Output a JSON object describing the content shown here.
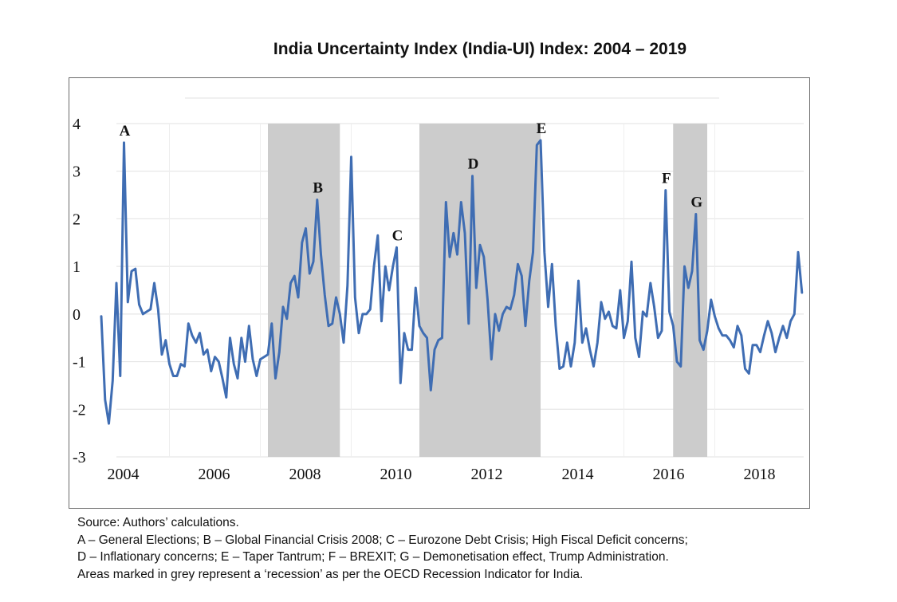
{
  "chart_data": {
    "type": "line",
    "title": "India Uncertainty Index (India-UI) Index: 2004 – 2019",
    "xlabel": "",
    "ylabel": "",
    "ylim": [
      -3,
      4
    ],
    "yticks": [
      "4",
      "3",
      "2",
      "1",
      "0",
      "-1",
      "-2",
      "-3"
    ],
    "ytick_values": [
      4,
      3,
      2,
      1,
      0,
      -1,
      -2,
      -3
    ],
    "xtick_labels": [
      "2004",
      "2006",
      "2008",
      "2010",
      "2012",
      "2014",
      "2016",
      "2018"
    ],
    "x_start": "2004-01",
    "x_frequency": "monthly",
    "grid": true,
    "line_color": "#3f6db3",
    "recession_color": "#cccccc",
    "recession_periods": [
      {
        "start": "2007-09",
        "end": "2009-04"
      },
      {
        "start": "2011-01",
        "end": "2013-09"
      },
      {
        "start": "2016-08",
        "end": "2017-05"
      }
    ],
    "series": [
      {
        "name": "India-UI",
        "values": [
          -0.05,
          -1.8,
          -2.3,
          -1.4,
          0.65,
          -1.3,
          3.6,
          0.25,
          0.9,
          0.95,
          0.2,
          0.0,
          0.05,
          0.1,
          0.65,
          0.1,
          -0.85,
          -0.55,
          -1.05,
          -1.3,
          -1.3,
          -1.05,
          -1.1,
          -0.2,
          -0.45,
          -0.6,
          -0.4,
          -0.85,
          -0.75,
          -1.2,
          -0.9,
          -1.0,
          -1.35,
          -1.75,
          -0.5,
          -1.05,
          -1.35,
          -0.5,
          -1.0,
          -0.25,
          -0.95,
          -1.3,
          -0.95,
          -0.9,
          -0.85,
          -0.2,
          -1.35,
          -0.8,
          0.15,
          -0.1,
          0.65,
          0.8,
          0.35,
          1.5,
          1.8,
          0.85,
          1.1,
          2.4,
          1.25,
          0.4,
          -0.25,
          -0.2,
          0.35,
          0.0,
          -0.6,
          0.6,
          3.3,
          0.35,
          -0.4,
          0.0,
          0.0,
          0.1,
          1.0,
          1.65,
          -0.15,
          1.0,
          0.5,
          1.0,
          1.4,
          -1.45,
          -0.4,
          -0.75,
          -0.75,
          0.55,
          -0.25,
          -0.4,
          -0.5,
          -1.6,
          -0.75,
          -0.55,
          -0.5,
          2.35,
          1.2,
          1.7,
          1.25,
          2.35,
          1.7,
          -0.2,
          2.9,
          0.55,
          1.45,
          1.2,
          0.3,
          -0.95,
          0.0,
          -0.35,
          0.0,
          0.15,
          0.1,
          0.4,
          1.05,
          0.8,
          -0.25,
          0.7,
          1.3,
          3.55,
          3.65,
          1.3,
          0.15,
          1.05,
          -0.25,
          -1.15,
          -1.1,
          -0.6,
          -1.1,
          -0.6,
          0.7,
          -0.6,
          -0.3,
          -0.75,
          -1.1,
          -0.6,
          0.25,
          -0.1,
          0.05,
          -0.25,
          -0.3,
          0.5,
          -0.5,
          -0.15,
          1.1,
          -0.5,
          -0.9,
          0.05,
          -0.05,
          0.65,
          0.15,
          -0.5,
          -0.35,
          2.6,
          0.05,
          -0.25,
          -1.0,
          -1.1,
          1.0,
          0.55,
          0.9,
          2.1,
          -0.55,
          -0.75,
          -0.35,
          0.3,
          -0.05,
          -0.3,
          -0.45,
          -0.45,
          -0.55,
          -0.7,
          -0.25,
          -0.45,
          -1.15,
          -1.25,
          -0.65,
          -0.65,
          -0.8,
          -0.45,
          -0.15,
          -0.4,
          -0.8,
          -0.5,
          -0.25,
          -0.5,
          -0.15,
          0.0,
          1.3,
          0.45
        ]
      }
    ],
    "annotations": [
      {
        "label": "A",
        "index": 6
      },
      {
        "label": "B",
        "index": 57
      },
      {
        "label": "C",
        "index": 78
      },
      {
        "label": "D",
        "index": 98
      },
      {
        "label": "E",
        "index": 116
      },
      {
        "label": "F",
        "index": 149
      },
      {
        "label": "G",
        "index": 157
      }
    ]
  },
  "notes": {
    "source": "Source: Authors’ calculations.",
    "line1": "A – General Elections; B – Global Financial Crisis 2008; C – Eurozone Debt Crisis; High Fiscal Deficit concerns;",
    "line2": "D – Inflationary concerns; E – Taper Tantrum; F – BREXIT; G – Demonetisation effect, Trump Administration.",
    "line3": "Areas marked in grey represent a ‘recession’ as per the OECD Recession Indicator for India."
  }
}
